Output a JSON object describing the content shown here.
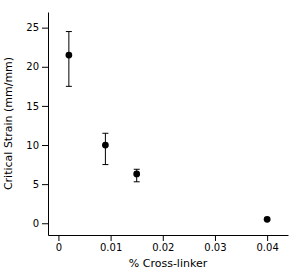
{
  "chart_data": {
    "type": "scatter",
    "x": [
      0.002,
      0.009,
      0.015,
      0.04
    ],
    "values": [
      21.5,
      10.0,
      6.3,
      0.5
    ],
    "error_upper": [
      3.0,
      1.5,
      0.6,
      0.15
    ],
    "error_lower": [
      4.0,
      2.5,
      1.0,
      0.15
    ],
    "xlabel": "% Cross-linker",
    "ylabel": "Critical Strain (mm/mm)",
    "xlim": [
      -0.002,
      0.044
    ],
    "ylim": [
      -1.5,
      27
    ],
    "xticks": [
      0,
      0.01,
      0.02,
      0.03,
      0.04
    ],
    "yticks": [
      0,
      5,
      10,
      15,
      20,
      25
    ],
    "color": "black",
    "marker": "circle"
  }
}
